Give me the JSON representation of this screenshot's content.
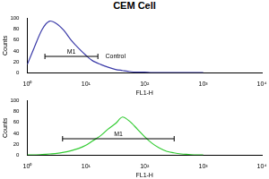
{
  "title": "CEM Cell",
  "chart_data": [
    {
      "type": "line",
      "x_label": "FL1-H",
      "y_label": "Counts",
      "log": "x",
      "grid": false,
      "color": "#3a3aa8",
      "x": [
        1,
        1.3,
        1.8,
        2.4,
        3.2,
        4.2,
        5.6,
        7.5,
        10,
        13,
        18,
        24,
        32,
        42,
        56,
        75,
        100,
        133,
        178,
        237,
        316,
        422,
        562,
        750,
        1000
      ],
      "values": [
        15,
        45,
        80,
        95,
        90,
        78,
        60,
        45,
        32,
        22,
        15,
        10,
        6,
        4,
        2,
        1,
        1,
        0,
        0,
        0,
        0,
        0,
        0,
        0,
        0
      ],
      "xlim": [
        1,
        10000
      ],
      "xticks": [
        {
          "value": 1,
          "label": "10⁰"
        },
        {
          "value": 10,
          "label": "10¹"
        },
        {
          "value": 100,
          "label": "10²"
        },
        {
          "value": 1000,
          "label": "10³"
        },
        {
          "value": 10000,
          "label": "10⁴"
        }
      ],
      "ylim": [
        0,
        100
      ],
      "yticks": [
        0,
        20,
        40,
        60,
        80,
        100
      ],
      "annotations": [
        {
          "text": "M1",
          "x_range": [
            2,
            16
          ],
          "y": 30
        },
        {
          "text": "Control",
          "x": 20,
          "y": 30
        }
      ]
    },
    {
      "type": "line",
      "x_label": "FL1-H",
      "y_label": "Counts",
      "log": "x",
      "grid": false,
      "color": "#33cc33",
      "x": [
        1,
        1.3,
        1.8,
        2.4,
        3.2,
        4.2,
        5.6,
        7.5,
        10,
        13,
        18,
        24,
        32,
        42,
        56,
        75,
        100,
        133,
        178,
        237,
        316,
        422,
        562,
        750,
        1000
      ],
      "values": [
        0,
        0,
        1,
        2,
        3,
        5,
        8,
        12,
        18,
        26,
        36,
        48,
        58,
        70,
        62,
        48,
        34,
        22,
        13,
        7,
        4,
        2,
        1,
        0,
        0
      ],
      "xlim": [
        1,
        10000
      ],
      "xticks": [
        {
          "value": 1,
          "label": "10⁰"
        },
        {
          "value": 10,
          "label": "10¹"
        },
        {
          "value": 100,
          "label": "10²"
        },
        {
          "value": 1000,
          "label": "10³"
        },
        {
          "value": 10000,
          "label": "10⁴"
        }
      ],
      "ylim": [
        0,
        100
      ],
      "yticks": [
        0,
        20,
        40,
        60,
        80,
        100
      ],
      "annotations": [
        {
          "text": "M1",
          "x_range": [
            4,
            320
          ],
          "y": 30
        }
      ]
    }
  ]
}
